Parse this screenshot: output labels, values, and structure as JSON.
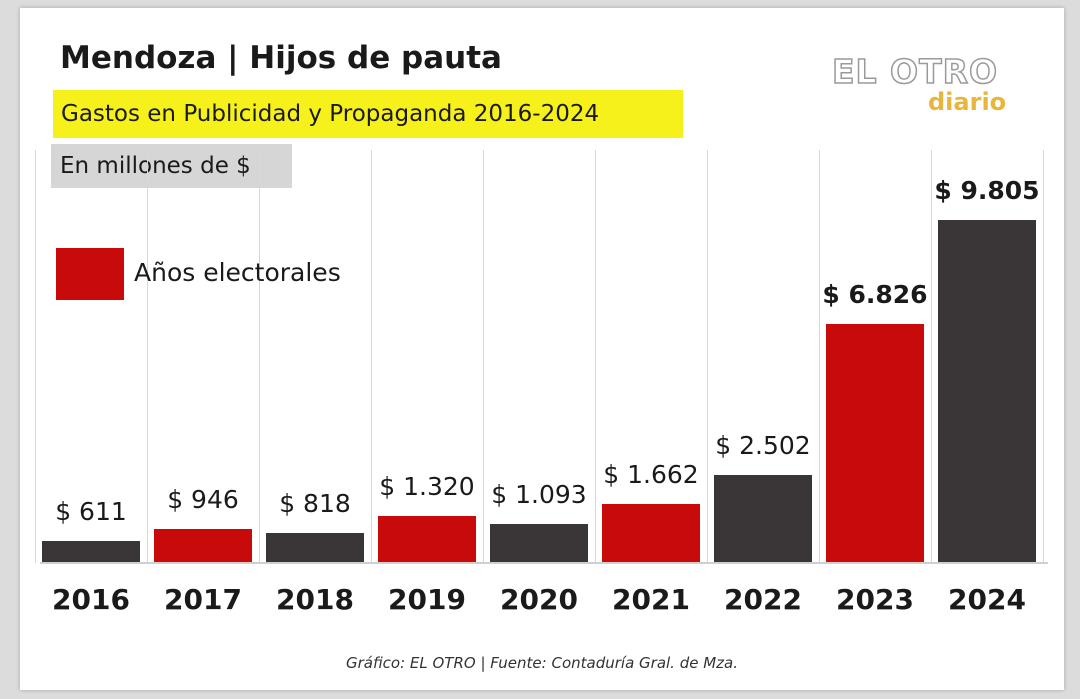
{
  "title": "Mendoza | Hijos de pauta",
  "subtitle": "Gastos en Publicidad y Propaganda 2016-2024",
  "units": "En millones de $",
  "logo": {
    "line1": "EL OTRO",
    "line2": "diario"
  },
  "legend": {
    "label": "Años electorales"
  },
  "source": "Gráfico: EL OTRO | Fuente: Contaduría Gral. de Mza.",
  "colors": {
    "normal": "#3a3536",
    "electoral": "#c80a0b",
    "highlight": "#f7f11b"
  },
  "chart_data": {
    "type": "bar",
    "title": "Mendoza | Hijos de pauta",
    "subtitle": "Gastos en Publicidad y Propaganda 2016-2024",
    "ylabel": "En millones de $",
    "categories": [
      "2016",
      "2017",
      "2018",
      "2019",
      "2020",
      "2021",
      "2022",
      "2023",
      "2024"
    ],
    "values": [
      611,
      946,
      818,
      1320,
      1093,
      1662,
      2502,
      6826,
      9805
    ],
    "labels": [
      "$ 611",
      "$ 946",
      "$ 818",
      "$ 1.320",
      "$ 1.093",
      "$ 1.662",
      "$ 2.502",
      "$ 6.826",
      "$ 9.805"
    ],
    "electoral": [
      false,
      true,
      false,
      true,
      false,
      true,
      false,
      true,
      false
    ],
    "ylim": [
      0,
      10000
    ],
    "grid": true,
    "legend_position": "left"
  }
}
